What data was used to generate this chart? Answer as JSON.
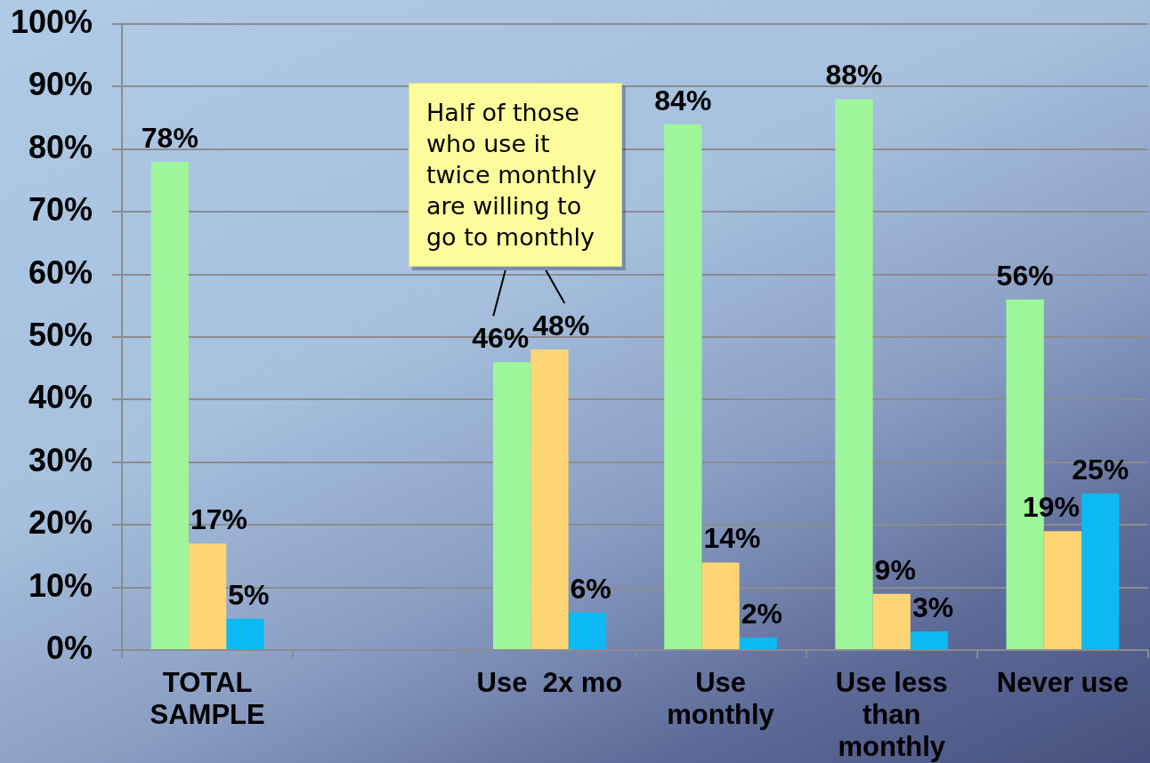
{
  "chart_data": {
    "type": "bar",
    "categories": [
      "TOTAL SAMPLE",
      null,
      "Use  2x mo",
      "Use monthly",
      "Use less than monthly",
      "Never use"
    ],
    "series": [
      {
        "color": "#9ef59a",
        "values": [
          78,
          null,
          46,
          84,
          88,
          56
        ],
        "value_labels": [
          "78%",
          null,
          "46%",
          "84%",
          "88%",
          "56%"
        ]
      },
      {
        "color": "#fdd575",
        "values": [
          17,
          null,
          48,
          14,
          9,
          19
        ],
        "value_labels": [
          "17%",
          null,
          "48%",
          "14%",
          "9%",
          "19%"
        ]
      },
      {
        "color": "#0cb9f2",
        "values": [
          5,
          null,
          6,
          2,
          3,
          25
        ],
        "value_labels": [
          "5%",
          null,
          "6%",
          "2%",
          "3%",
          "25%"
        ]
      }
    ],
    "ylim": [
      0,
      100
    ],
    "yticks": [
      {
        "value": 0,
        "label": "0%"
      },
      {
        "value": 10,
        "label": "10%"
      },
      {
        "value": 20,
        "label": "20%"
      },
      {
        "value": 30,
        "label": "30%"
      },
      {
        "value": 40,
        "label": "40%"
      },
      {
        "value": 50,
        "label": "50%"
      },
      {
        "value": 60,
        "label": "60%"
      },
      {
        "value": 70,
        "label": "70%"
      },
      {
        "value": 80,
        "label": "80%"
      },
      {
        "value": 90,
        "label": "90%"
      },
      {
        "value": 100,
        "label": "100%"
      }
    ],
    "grid": "y",
    "legend": false,
    "annotations": [
      "Half of those who use it twice monthly are willing to go to monthly"
    ]
  }
}
